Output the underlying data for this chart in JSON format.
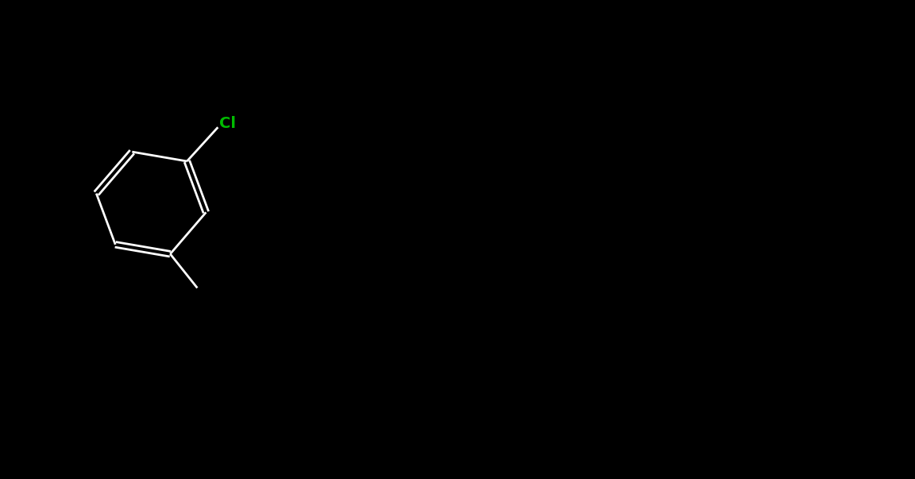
{
  "background_color": "#000000",
  "bond_color": "#000000",
  "n_color": "#0000CD",
  "nh_color": "#0000CD",
  "cl_color": "#00AA00",
  "atom_colors": {
    "N": "#1E40FF",
    "NH": "#1E40FF",
    "Cl": "#00CC00",
    "C": "#000000"
  },
  "figsize": [
    11.52,
    6.03
  ],
  "dpi": 100
}
